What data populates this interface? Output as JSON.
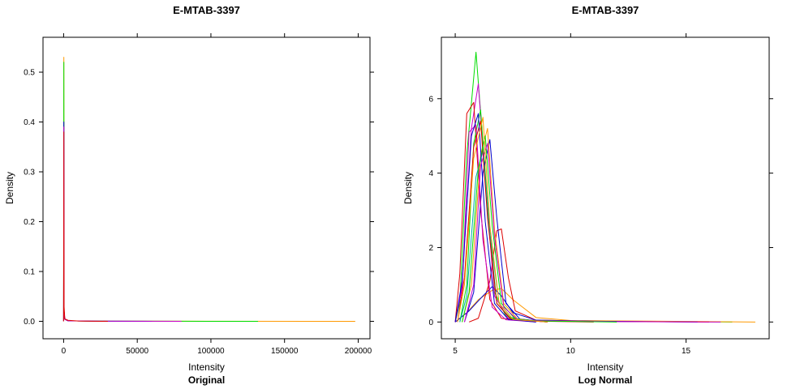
{
  "chart_data": [
    {
      "type": "line",
      "title": "E-MTAB-3397",
      "subtitle": "Original",
      "xlabel": "Intensity",
      "ylabel": "Density",
      "xlim": [
        -14000,
        208000
      ],
      "ylim": [
        -0.035,
        0.57
      ],
      "xticks": [
        0,
        50000,
        100000,
        150000,
        200000
      ],
      "xtick_labels": [
        "0",
        "50000",
        "100000",
        "150000",
        "200000"
      ],
      "yticks": [
        0.0,
        0.1,
        0.2,
        0.3,
        0.4,
        0.5
      ],
      "ytick_labels": [
        "0.0",
        "0.1",
        "0.2",
        "0.3",
        "0.4",
        "0.5"
      ],
      "grid": false,
      "series": [
        {
          "color": "#ff9900",
          "x": [
            0,
            150,
            300,
            800,
            3000,
            20000,
            100000,
            198000
          ],
          "y": [
            0.0,
            0.53,
            0.02,
            0.004,
            0.001,
            0.0003,
            0.0001,
            0.0
          ]
        },
        {
          "color": "#00dd00",
          "x": [
            0,
            150,
            300,
            800,
            3000,
            20000,
            80000,
            132000
          ],
          "y": [
            0.0,
            0.52,
            0.02,
            0.004,
            0.001,
            0.0003,
            0.0001,
            0.0
          ]
        },
        {
          "color": "#0000cc",
          "x": [
            0,
            150,
            300,
            800,
            3000,
            20000,
            60000
          ],
          "y": [
            0.0,
            0.4,
            0.02,
            0.004,
            0.001,
            0.0003,
            0.0
          ]
        },
        {
          "color": "#cc00cc",
          "x": [
            0,
            150,
            300,
            800,
            3000,
            20000,
            80000
          ],
          "y": [
            0.0,
            0.39,
            0.02,
            0.004,
            0.001,
            0.0003,
            0.0
          ]
        },
        {
          "color": "#dd0000",
          "x": [
            0,
            150,
            300,
            800,
            3000,
            10000,
            30000
          ],
          "y": [
            0.0,
            0.38,
            0.03,
            0.005,
            0.002,
            0.0005,
            0.0
          ]
        }
      ]
    },
    {
      "type": "line",
      "title": "E-MTAB-3397",
      "subtitle": "Log Normal",
      "xlabel": "Intensity",
      "ylabel": "Density",
      "xlim": [
        4.4,
        18.6
      ],
      "ylim": [
        -0.45,
        7.65
      ],
      "xticks": [
        5,
        10,
        15
      ],
      "xtick_labels": [
        "5",
        "10",
        "15"
      ],
      "yticks": [
        0,
        2,
        4,
        6
      ],
      "ytick_labels": [
        "0",
        "2",
        "4",
        "6"
      ],
      "grid": false,
      "series": [
        {
          "color": "#00dd00",
          "x": [
            5.0,
            5.2,
            5.5,
            5.9,
            6.3,
            6.7,
            7.2,
            8.0,
            10.0,
            14.0,
            17.0
          ],
          "y": [
            0.0,
            0.5,
            4.5,
            7.25,
            4.0,
            0.8,
            0.15,
            0.05,
            0.02,
            0.01,
            0.0
          ]
        },
        {
          "color": "#ff9900",
          "x": [
            5.0,
            5.5,
            6.0,
            6.6,
            7.0,
            7.5,
            8.5,
            10.0,
            14.0,
            18.0
          ],
          "y": [
            0.0,
            0.25,
            0.6,
            0.85,
            0.9,
            0.6,
            0.12,
            0.04,
            0.02,
            0.0
          ]
        },
        {
          "color": "#dd0000",
          "x": [
            5.6,
            6.0,
            6.5,
            6.8,
            7.0,
            7.3,
            7.6,
            8.5,
            11.0,
            16.0
          ],
          "y": [
            0.0,
            0.1,
            1.1,
            2.45,
            2.5,
            1.2,
            0.3,
            0.05,
            0.02,
            0.0
          ]
        },
        {
          "color": "#0000cc",
          "x": [
            5.0,
            5.6,
            6.2,
            6.6,
            7.0,
            7.5,
            8.5,
            11.0,
            15.5
          ],
          "y": [
            0.0,
            0.3,
            0.7,
            0.95,
            0.7,
            0.25,
            0.05,
            0.02,
            0.0
          ]
        },
        {
          "color": "#cc00cc",
          "x": [
            5.0,
            5.3,
            5.7,
            6.0,
            6.3,
            6.7,
            7.3,
            8.5,
            12.0,
            16.5
          ],
          "y": [
            0.0,
            1.0,
            5.2,
            6.4,
            3.8,
            0.7,
            0.1,
            0.04,
            0.01,
            0.0
          ]
        },
        {
          "color": "#dd0000",
          "x": [
            5.0,
            5.2,
            5.5,
            5.8,
            6.1,
            6.5,
            7.0,
            8.0,
            11.0
          ],
          "y": [
            0.0,
            1.3,
            5.6,
            5.9,
            3.0,
            0.6,
            0.1,
            0.03,
            0.0
          ]
        },
        {
          "color": "#00dd00",
          "x": [
            5.2,
            5.5,
            5.8,
            6.1,
            6.4,
            6.8,
            7.4,
            8.5,
            12.0
          ],
          "y": [
            0.0,
            1.0,
            4.8,
            5.7,
            3.0,
            0.5,
            0.1,
            0.03,
            0.0
          ]
        },
        {
          "color": "#0000cc",
          "x": [
            5.4,
            5.8,
            6.2,
            6.5,
            6.8,
            7.2,
            7.8,
            9.0
          ],
          "y": [
            0.0,
            0.8,
            4.0,
            4.9,
            2.8,
            0.5,
            0.08,
            0.0
          ]
        },
        {
          "color": "#ff9900",
          "x": [
            5.3,
            5.7,
            6.1,
            6.4,
            6.7,
            7.1,
            7.7,
            9.0
          ],
          "y": [
            0.0,
            1.0,
            4.5,
            5.2,
            2.5,
            0.5,
            0.08,
            0.0
          ]
        },
        {
          "color": "#cc00cc",
          "x": [
            5.0,
            5.3,
            5.6,
            5.9,
            6.2,
            6.6,
            7.2,
            8.5
          ],
          "y": [
            0.0,
            0.9,
            5.1,
            5.3,
            2.2,
            0.4,
            0.06,
            0.0
          ]
        },
        {
          "color": "#00aaaa",
          "x": [
            5.2,
            5.5,
            5.9,
            6.2,
            6.5,
            6.9,
            7.5,
            9.0
          ],
          "y": [
            0.0,
            0.7,
            3.9,
            4.6,
            2.4,
            0.5,
            0.08,
            0.0
          ]
        },
        {
          "color": "#dd0000",
          "x": [
            5.1,
            5.4,
            5.8,
            6.1,
            6.4,
            6.8,
            7.4,
            9.0
          ],
          "y": [
            0.0,
            1.2,
            4.7,
            5.4,
            2.8,
            0.5,
            0.08,
            0.0
          ]
        },
        {
          "color": "#00dd00",
          "x": [
            5.3,
            5.6,
            6.0,
            6.3,
            6.6,
            7.0,
            7.6,
            9.0
          ],
          "y": [
            0.0,
            0.8,
            4.1,
            5.0,
            2.6,
            0.5,
            0.08,
            0.0
          ]
        },
        {
          "color": "#0000cc",
          "x": [
            5.0,
            5.3,
            5.7,
            6.0,
            6.3,
            6.7,
            7.3,
            8.5
          ],
          "y": [
            0.0,
            1.1,
            5.0,
            5.6,
            2.7,
            0.5,
            0.07,
            0.0
          ]
        },
        {
          "color": "#cc00cc",
          "x": [
            5.4,
            5.8,
            6.1,
            6.4,
            6.7,
            7.1,
            7.7,
            9.0
          ],
          "y": [
            0.0,
            1.0,
            4.2,
            4.8,
            2.3,
            0.4,
            0.06,
            0.0
          ]
        },
        {
          "color": "#ff9900",
          "x": [
            5.1,
            5.4,
            5.8,
            6.2,
            6.5,
            6.9,
            7.5,
            9.0
          ],
          "y": [
            0.0,
            1.0,
            4.4,
            5.5,
            2.6,
            0.5,
            0.07,
            0.0
          ]
        }
      ]
    }
  ]
}
